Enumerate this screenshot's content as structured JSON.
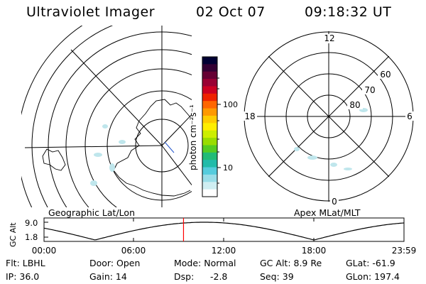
{
  "header": {
    "instrument": "Ultraviolet Imager",
    "date": "02 Oct 07",
    "time": "09:18:32 UT"
  },
  "left_map": {
    "label": "Geographic Lat/Lon"
  },
  "colorbar": {
    "unit_label": "photon cm⁻²s⁻¹",
    "ticks": [
      "100",
      "10"
    ],
    "scale": "log",
    "colors": [
      "#000033",
      "#330033",
      "#660033",
      "#990033",
      "#cc0022",
      "#ee2200",
      "#ff6600",
      "#ff9900",
      "#ffcc00",
      "#ffee00",
      "#ccee00",
      "#99dd00",
      "#55cc22",
      "#22bb77",
      "#22bbaa",
      "#55ccdd",
      "#99dde8",
      "#cfeef2",
      "#ffffff"
    ]
  },
  "right_map": {
    "label": "Apex MLat/MLT",
    "clock_labels": {
      "top": "12",
      "left": "18",
      "right": "6",
      "bottom": "0"
    },
    "lat_labels": [
      "60",
      "70",
      "80"
    ]
  },
  "altitude_plot": {
    "ylabel": "GC Alt",
    "yticks": [
      "9.0",
      "1.8"
    ],
    "xticks": [
      "00:00",
      "06:00",
      "12:00",
      "18:00",
      "23:59"
    ],
    "current_marker_hour": 9.3,
    "marker_color": "#ff0000"
  },
  "info": {
    "filter": "Flt: LBHL",
    "door": "Door: Open",
    "mode": "Mode: Normal",
    "gc_alt": "GC Alt: 8.9 Re",
    "glat": "GLat: -61.9",
    "ip": "IP: 36.0",
    "gain": "Gain: 14",
    "dsp_label": "Dsp:",
    "dsp_value": "-2.8",
    "seq": "Seq: 39",
    "glon": "GLon: 197.4"
  }
}
